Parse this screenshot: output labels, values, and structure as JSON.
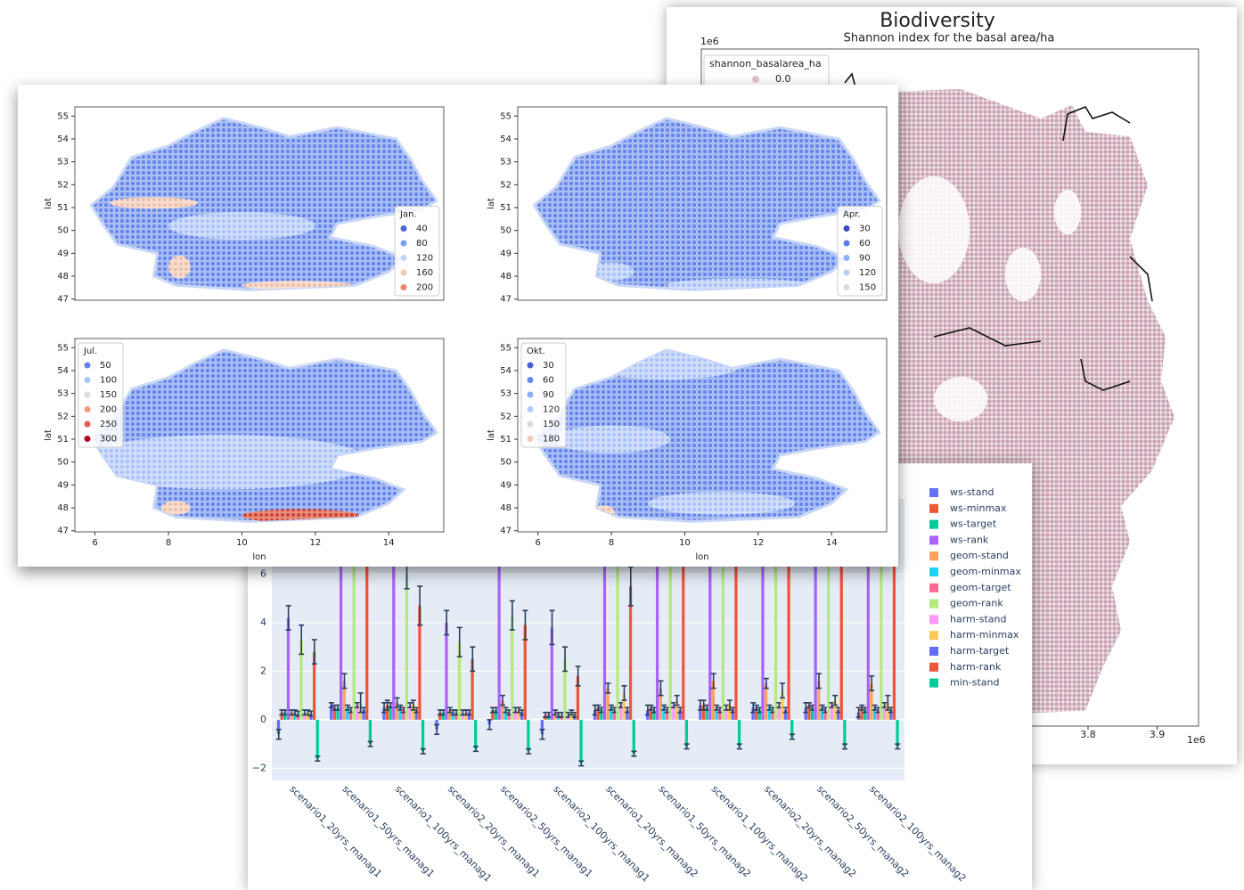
{
  "chart_data": [
    {
      "type": "map",
      "title": "Biodiversity",
      "subtitle": "Shannon index for the basal area/ha",
      "y_offset_label": "1e6",
      "x_offset_label": "1e6",
      "xlim": [
        3.24,
        3.96
      ],
      "xticks": [
        3.8,
        3.9
      ],
      "legend": {
        "title": "shannon_basalarea_ha",
        "values": [
          {
            "value": 0,
            "label": "0.0"
          }
        ],
        "colors": [
          "#e3c3cf"
        ]
      }
    },
    {
      "type": "scatter-map",
      "ylabel": "lat",
      "xlim": [
        5.45,
        15.5
      ],
      "ylim": [
        46.95,
        55.4
      ],
      "yticks": [
        47,
        48,
        49,
        50,
        51,
        52,
        53,
        54,
        55
      ],
      "legend_loc": "lower right",
      "legend": {
        "title": "Jan.",
        "values": [
          40,
          80,
          120,
          160,
          200
        ],
        "colors": [
          "#4a66d8",
          "#7b9ff9",
          "#c0d4f5",
          "#f2cbb7",
          "#ee8468"
        ]
      }
    },
    {
      "type": "scatter-map",
      "ylabel": "lat",
      "xlim": [
        5.45,
        15.5
      ],
      "ylim": [
        46.95,
        55.4
      ],
      "yticks": [
        47,
        48,
        49,
        50,
        51,
        52,
        53,
        54,
        55
      ],
      "legend_loc": "lower right",
      "legend": {
        "title": "Apr.",
        "values": [
          30,
          60,
          90,
          120,
          150
        ],
        "colors": [
          "#3b4cc0",
          "#5d7ce6",
          "#8db0fe",
          "#b9d0f9",
          "#dddcdc"
        ]
      }
    },
    {
      "type": "scatter-map",
      "ylabel": "lat",
      "xlabel": "lon",
      "xlim": [
        5.45,
        15.5
      ],
      "ylim": [
        46.95,
        55.4
      ],
      "yticks": [
        47,
        48,
        49,
        50,
        51,
        52,
        53,
        54,
        55
      ],
      "xticks": [
        6,
        8,
        10,
        12,
        14
      ],
      "legend_loc": "upper left",
      "legend": {
        "title": "Jul.",
        "values": [
          50,
          100,
          150,
          200,
          250,
          300
        ],
        "colors": [
          "#6282ea",
          "#aac7fd",
          "#dddcdc",
          "#f4987a",
          "#de604d",
          "#b40426"
        ]
      }
    },
    {
      "type": "scatter-map",
      "ylabel": "lat",
      "xlabel": "lon",
      "xlim": [
        5.45,
        15.5
      ],
      "ylim": [
        46.95,
        55.4
      ],
      "yticks": [
        47,
        48,
        49,
        50,
        51,
        52,
        53,
        54,
        55
      ],
      "xticks": [
        6,
        8,
        10,
        12,
        14
      ],
      "legend_loc": "upper left",
      "legend": {
        "title": "Okt.",
        "values": [
          30,
          60,
          90,
          120,
          150,
          180
        ],
        "colors": [
          "#4961d2",
          "#6687ed",
          "#8caffe",
          "#b2ccfb",
          "#d5dbe5",
          "#f2c9b4"
        ]
      }
    },
    {
      "type": "bar",
      "ylim": [
        -2.5,
        9.1
      ],
      "yticks": [
        {
          "value": -2,
          "label": "−2"
        },
        0,
        2,
        4,
        6
      ],
      "categories": [
        "scenario1_20yrs_manag1",
        "scenario1_50yrs_manag1",
        "scenario1_100yrs_manag1",
        "scenario2_20yrs_manag1",
        "scenario2_50yrs_manag1",
        "scenario2_100yrs_manag1",
        "scenario1_20yrs_manag2",
        "scenario1_50yrs_manag2",
        "scenario1_100yrs_manag2",
        "scenario2_20yrs_manag2",
        "scenario2_50yrs_manag2",
        "scenario2_100yrs_manag2"
      ],
      "series": [
        {
          "name": "ws-stand",
          "color": "#636efa",
          "values": [
            -0.6,
            0.6,
            0.5,
            -0.4,
            -0.2,
            -0.6,
            0.4,
            0.4,
            0.6,
            0.5,
            0.5,
            0.3
          ],
          "errors": [
            0.2,
            0.1,
            0.2,
            0.2,
            0.2,
            0.2,
            0.2,
            0.2,
            0.2,
            0.2,
            0.2,
            0.2
          ]
        },
        {
          "name": "ws-minmax",
          "color": "#EF553B",
          "values": [
            0.3,
            0.5,
            0.6,
            0.3,
            0.4,
            0.2,
            0.5,
            0.5,
            0.6,
            0.5,
            0.6,
            0.5
          ],
          "errors": [
            0.1,
            0.1,
            0.2,
            0.1,
            0.1,
            0.1,
            0.1,
            0.1,
            0.2,
            0.1,
            0.1,
            0.1
          ]
        },
        {
          "name": "ws-target",
          "color": "#00cc96",
          "values": [
            0.3,
            0.5,
            0.6,
            0.3,
            0.4,
            0.2,
            0.4,
            0.4,
            0.5,
            0.4,
            0.5,
            0.4
          ],
          "errors": [
            0.1,
            0.1,
            0.1,
            0.1,
            0.1,
            0.1,
            0.1,
            0.1,
            0.1,
            0.1,
            0.1,
            0.1
          ]
        },
        {
          "name": "ws-rank",
          "color": "#ab63fa",
          "values": [
            4.2,
            9,
            9,
            4,
            9,
            3.8,
            9,
            9,
            9,
            9,
            9,
            9
          ],
          "errors": [
            0.5,
            0.6,
            0.6,
            0.5,
            0.6,
            0.7,
            0.6,
            0.6,
            0.6,
            0.6,
            0.6,
            0.6
          ]
        },
        {
          "name": "geom-stand",
          "color": "#FFA15A",
          "values": [
            0.3,
            1.6,
            0.7,
            0.4,
            0.8,
            0.3,
            1.3,
            1.3,
            1.6,
            1.5,
            1.6,
            1.5
          ],
          "errors": [
            0.1,
            0.3,
            0.2,
            0.1,
            0.2,
            0.1,
            0.2,
            0.3,
            0.3,
            0.2,
            0.3,
            0.3
          ]
        },
        {
          "name": "geom-minmax",
          "color": "#19d3f3",
          "values": [
            0.3,
            0.5,
            0.5,
            0.3,
            0.4,
            0.2,
            0.5,
            0.5,
            0.5,
            0.5,
            0.5,
            0.5
          ],
          "errors": [
            0.1,
            0.1,
            0.1,
            0.1,
            0.1,
            0.1,
            0.1,
            0.1,
            0.1,
            0.1,
            0.1,
            0.1
          ]
        },
        {
          "name": "geom-target",
          "color": "#FF6692",
          "values": [
            0.25,
            0.4,
            0.4,
            0.3,
            0.3,
            0.2,
            0.4,
            0.4,
            0.4,
            0.4,
            0.4,
            0.4
          ],
          "errors": [
            0.1,
            0.1,
            0.1,
            0.1,
            0.1,
            0.1,
            0.1,
            0.1,
            0.1,
            0.1,
            0.1,
            0.1
          ]
        },
        {
          "name": "geom-rank",
          "color": "#B6E880",
          "values": [
            3.3,
            9,
            6,
            3.2,
            4.3,
            2.5,
            9,
            9,
            9,
            9,
            9,
            9
          ],
          "errors": [
            0.6,
            0.6,
            0.6,
            0.6,
            0.6,
            0.5,
            0.6,
            0.6,
            0.6,
            0.6,
            0.6,
            0.6
          ]
        },
        {
          "name": "harm-stand",
          "color": "#FF97FF",
          "values": [
            0.3,
            0.6,
            0.6,
            0.3,
            0.4,
            0.2,
            0.6,
            0.6,
            0.5,
            0.6,
            0.6,
            0.6
          ],
          "errors": [
            0.1,
            0.1,
            0.1,
            0.1,
            0.1,
            0.1,
            0.1,
            0.1,
            0.1,
            0.1,
            0.1,
            0.1
          ]
        },
        {
          "name": "harm-minmax",
          "color": "#FECB52",
          "values": [
            0.3,
            0.7,
            0.6,
            0.3,
            0.4,
            0.3,
            1.1,
            0.8,
            0.6,
            1.2,
            0.8,
            0.7
          ],
          "errors": [
            0.1,
            0.4,
            0.2,
            0.1,
            0.1,
            0.1,
            0.3,
            0.2,
            0.2,
            0.3,
            0.2,
            0.3
          ]
        },
        {
          "name": "harm-target",
          "color": "#636efa",
          "values": [
            0.25,
            0.4,
            0.4,
            0.3,
            0.3,
            0.2,
            0.4,
            0.4,
            0.4,
            0.4,
            0.4,
            0.4
          ],
          "errors": [
            0.1,
            0.1,
            0.1,
            0.1,
            0.1,
            0.1,
            0.1,
            0.1,
            0.1,
            0.1,
            0.1,
            0.1
          ]
        },
        {
          "name": "harm-rank",
          "color": "#EF553B",
          "values": [
            2.8,
            9,
            4.7,
            2.5,
            3.9,
            1.8,
            5.5,
            9,
            9,
            9,
            9,
            9
          ],
          "errors": [
            0.5,
            0.6,
            0.8,
            0.5,
            0.6,
            0.4,
            0.8,
            0.6,
            0.6,
            0.6,
            0.6,
            0.6
          ]
        },
        {
          "name": "min-stand",
          "color": "#00cc96",
          "values": [
            -1.6,
            -1.0,
            -1.3,
            -1.2,
            -1.3,
            -1.8,
            -1.4,
            -1.1,
            -1.1,
            -0.7,
            -1.1,
            -1.1
          ],
          "errors": [
            0.1,
            0.1,
            0.1,
            0.1,
            0.1,
            0.1,
            0.1,
            0.1,
            0.1,
            0.1,
            0.1,
            0.1
          ]
        }
      ]
    }
  ]
}
